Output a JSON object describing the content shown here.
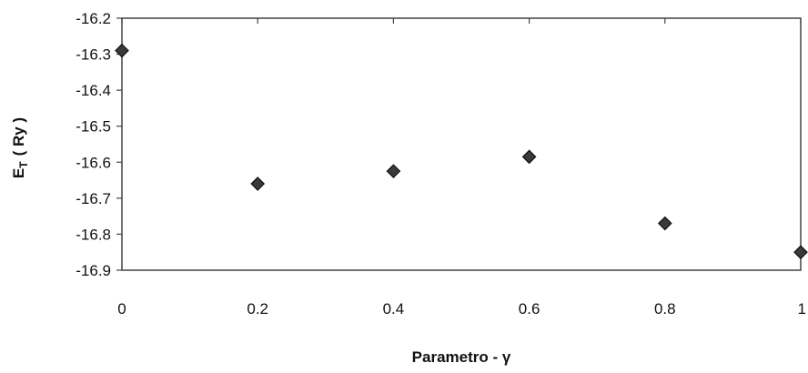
{
  "chart_data": {
    "type": "scatter",
    "title": "",
    "xlabel": "Parametro - γ",
    "ylabel": "E",
    "ylabel_subscript": "T",
    "ylabel_unit": "( Ry )",
    "xlim": [
      0,
      1
    ],
    "ylim": [
      -16.9,
      -16.2
    ],
    "x_ticks": [
      "0",
      "0.2",
      "0.4",
      "0.6",
      "0.8",
      "1"
    ],
    "y_ticks": [
      "-16.2",
      "-16.3",
      "-16.4",
      "-16.5",
      "-16.6",
      "-16.7",
      "-16.8",
      "-16.9"
    ],
    "grid": false,
    "legend": "none",
    "marker": "diamond",
    "marker_color": "#3a3a3a",
    "series": [
      {
        "x": [
          0,
          0.2,
          0.4,
          0.6,
          0.8,
          1.0
        ],
        "y": [
          -16.29,
          -16.66,
          -16.625,
          -16.585,
          -16.77,
          -16.85
        ]
      }
    ]
  }
}
